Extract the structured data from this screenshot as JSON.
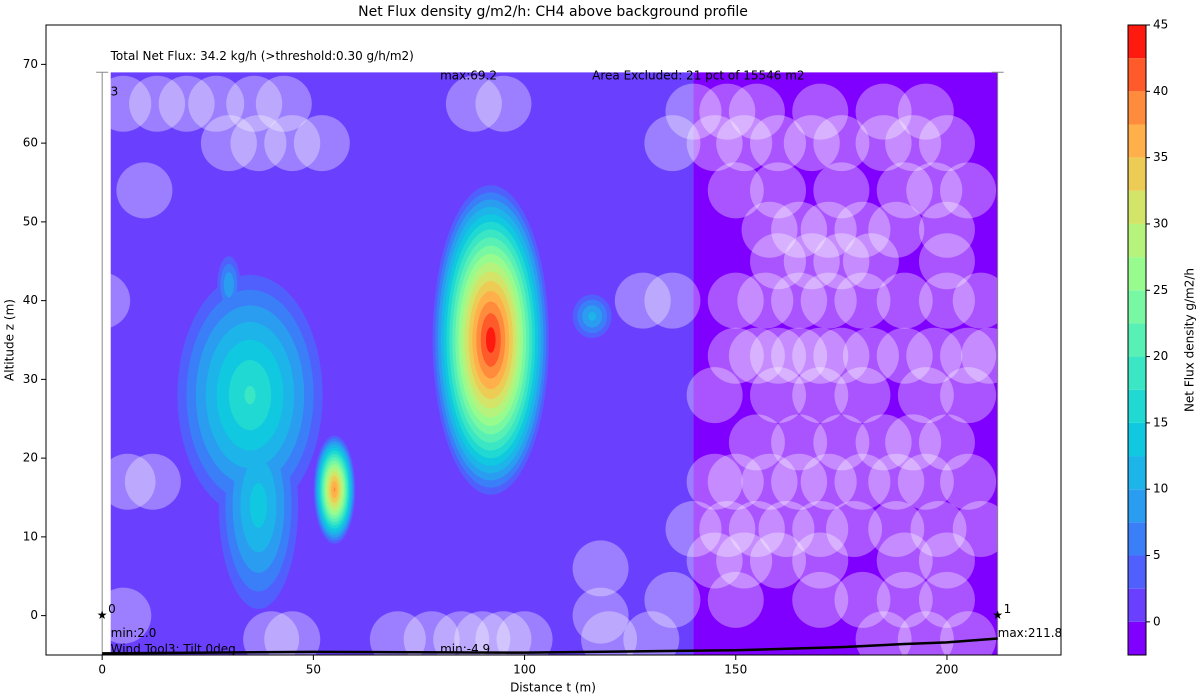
{
  "chart_data": {
    "type": "contour",
    "title": "Net Flux density g/m2/h: CH4 above background  profile",
    "x_label": "Distance t (m)",
    "y_label": "Altitude z (m)",
    "colorbar_label": "Net Flux density g/m2/h",
    "xlim": [
      -13.3,
      227
    ],
    "ylim": [
      -5,
      75
    ],
    "xticks": [
      0,
      50,
      100,
      150,
      200
    ],
    "yticks": [
      0,
      10,
      20,
      30,
      40,
      50,
      60,
      70
    ],
    "field_extent": {
      "x": [
        2,
        212
      ],
      "y": [
        -5,
        69
      ]
    },
    "levels": [
      -2.5,
      0,
      2.5,
      5,
      7.5,
      10,
      12.5,
      15,
      17.5,
      20,
      22.5,
      25,
      27.5,
      30,
      32.5,
      35,
      37.5,
      40,
      42.5,
      45
    ],
    "level_colors": [
      "#8000ff",
      "#6a40fe",
      "#5060fd",
      "#3a7ef8",
      "#2a9df1",
      "#1cb4e9",
      "#10c8df",
      "#20d9d2",
      "#3ae6c4",
      "#58f0b4",
      "#78f8a2",
      "#98fb8e",
      "#b6f37c",
      "#d4e468",
      "#edcc56",
      "#ffb04a",
      "#ff8c3c",
      "#ff5a2a",
      "#ff1a10"
    ],
    "colorbar_ticks": [
      0,
      5,
      10,
      15,
      20,
      25,
      30,
      35,
      40,
      45
    ],
    "regions": [
      {
        "x": [
          2,
          140
        ],
        "value": 1.5
      },
      {
        "x": [
          140,
          212
        ],
        "value": -1
      }
    ],
    "hotspots": [
      {
        "x": 92,
        "y": 35,
        "value": 44,
        "rx": 14,
        "ry": 20
      },
      {
        "x": 35,
        "y": 28,
        "value": 18,
        "rx": 18,
        "ry": 16
      },
      {
        "x": 37,
        "y": 14,
        "value": 14,
        "rx": 10,
        "ry": 14
      },
      {
        "x": 55,
        "y": 16,
        "value": 38,
        "rx": 5,
        "ry": 7
      },
      {
        "x": 30,
        "y": 42,
        "value": 10,
        "rx": 3,
        "ry": 4
      },
      {
        "x": 116,
        "y": 38,
        "value": 11,
        "rx": 5,
        "ry": 3
      }
    ],
    "excluded": [
      [
        5,
        65
      ],
      [
        13,
        65
      ],
      [
        20,
        65
      ],
      [
        27,
        65
      ],
      [
        36,
        65
      ],
      [
        43,
        65
      ],
      [
        88,
        65
      ],
      [
        95,
        65
      ],
      [
        140,
        64
      ],
      [
        148,
        64
      ],
      [
        155,
        64
      ],
      [
        170,
        64
      ],
      [
        185,
        64
      ],
      [
        195,
        64
      ],
      [
        30,
        60
      ],
      [
        37,
        60
      ],
      [
        45,
        60
      ],
      [
        52,
        60
      ],
      [
        135,
        60
      ],
      [
        145,
        60
      ],
      [
        152,
        60
      ],
      [
        160,
        60
      ],
      [
        168,
        60
      ],
      [
        175,
        60
      ],
      [
        185,
        60
      ],
      [
        192,
        60
      ],
      [
        200,
        60
      ],
      [
        10,
        54
      ],
      [
        150,
        54
      ],
      [
        160,
        54
      ],
      [
        175,
        54
      ],
      [
        190,
        54
      ],
      [
        197,
        54
      ],
      [
        205,
        54
      ],
      [
        158,
        49
      ],
      [
        165,
        49
      ],
      [
        172,
        49
      ],
      [
        180,
        49
      ],
      [
        188,
        49
      ],
      [
        200,
        49
      ],
      [
        160,
        45
      ],
      [
        168,
        45
      ],
      [
        175,
        45
      ],
      [
        182,
        45
      ],
      [
        200,
        45
      ],
      [
        0,
        40
      ],
      [
        128,
        40
      ],
      [
        135,
        40
      ],
      [
        150,
        40
      ],
      [
        157,
        40
      ],
      [
        165,
        40
      ],
      [
        172,
        40
      ],
      [
        180,
        40
      ],
      [
        190,
        40
      ],
      [
        200,
        40
      ],
      [
        208,
        40
      ],
      [
        150,
        33
      ],
      [
        155,
        33
      ],
      [
        160,
        33
      ],
      [
        165,
        33
      ],
      [
        170,
        33
      ],
      [
        175,
        33
      ],
      [
        182,
        33
      ],
      [
        190,
        33
      ],
      [
        197,
        33
      ],
      [
        205,
        33
      ],
      [
        210,
        33
      ],
      [
        145,
        28
      ],
      [
        160,
        28
      ],
      [
        170,
        28
      ],
      [
        180,
        28
      ],
      [
        195,
        28
      ],
      [
        205,
        28
      ],
      [
        155,
        22
      ],
      [
        165,
        22
      ],
      [
        175,
        22
      ],
      [
        185,
        22
      ],
      [
        192,
        22
      ],
      [
        200,
        22
      ],
      [
        6,
        17
      ],
      [
        12,
        17
      ],
      [
        145,
        17
      ],
      [
        150,
        17
      ],
      [
        158,
        17
      ],
      [
        165,
        17
      ],
      [
        172,
        17
      ],
      [
        180,
        17
      ],
      [
        188,
        17
      ],
      [
        195,
        17
      ],
      [
        205,
        17
      ],
      [
        140,
        11
      ],
      [
        148,
        11
      ],
      [
        155,
        11
      ],
      [
        162,
        11
      ],
      [
        170,
        11
      ],
      [
        178,
        11
      ],
      [
        188,
        11
      ],
      [
        198,
        11
      ],
      [
        208,
        11
      ],
      [
        145,
        7
      ],
      [
        152,
        7
      ],
      [
        160,
        7
      ],
      [
        170,
        7
      ],
      [
        190,
        7
      ],
      [
        200,
        7
      ],
      [
        118,
        6
      ],
      [
        135,
        2
      ],
      [
        150,
        2
      ],
      [
        170,
        2
      ],
      [
        180,
        2
      ],
      [
        190,
        2
      ],
      [
        200,
        2
      ],
      [
        5,
        0
      ],
      [
        118,
        0
      ],
      [
        40,
        -3
      ],
      [
        45,
        -3
      ],
      [
        70,
        -3
      ],
      [
        78,
        -3
      ],
      [
        85,
        -3
      ],
      [
        90,
        -3
      ],
      [
        95,
        -3
      ],
      [
        100,
        -3
      ],
      [
        120,
        -3
      ],
      [
        130,
        -3
      ],
      [
        185,
        -3
      ],
      [
        195,
        -3
      ],
      [
        205,
        -3
      ]
    ],
    "ground": {
      "x": [
        0,
        50,
        100,
        150,
        175,
        190,
        200,
        212
      ],
      "values": [
        -4.8,
        -4.6,
        -4.7,
        -4.4,
        -4.0,
        -3.6,
        -3.4,
        -2.9
      ]
    },
    "endpoints": [
      {
        "x": 0,
        "y": 0,
        "label": "0"
      },
      {
        "x": 212,
        "y": 0,
        "label": "1"
      }
    ],
    "annotations": [
      {
        "x": 2,
        "y": 71,
        "text": "Total Net Flux:  34.2 kg/h  (>threshold:0.30 g/h/m2)"
      },
      {
        "x": 80,
        "y": 68.5,
        "text": "max:69.2"
      },
      {
        "x": 116,
        "y": 68.5,
        "text": "Area Excluded:  21 pct of 15546 m2"
      },
      {
        "x": 2,
        "y": 66.5,
        "text": "3"
      },
      {
        "x": 2,
        "y": -2.3,
        "text": "min:2.0"
      },
      {
        "x": 2,
        "y": -4.3,
        "text": "Wind Tool3: Tilt 0deg"
      },
      {
        "x": 80,
        "y": -4.3,
        "text": "min:-4.9"
      },
      {
        "x": 212,
        "y": -2.3,
        "text": "max:211.8"
      }
    ]
  }
}
